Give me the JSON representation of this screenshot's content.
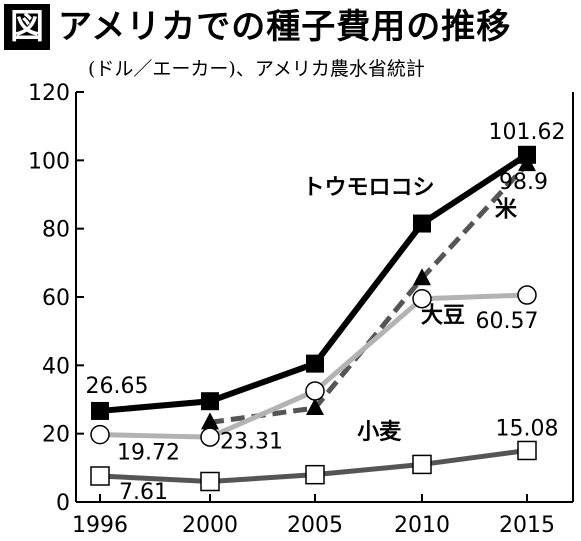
{
  "header": {
    "icon_label": "図",
    "title": "アメリカでの種子費用の推移",
    "subtitle": "(ドル／エーカー)、アメリカ農水省統計"
  },
  "chart_data": {
    "type": "line",
    "x": [
      1996,
      2000,
      2005,
      2010,
      2015
    ],
    "y_ticks": [
      0,
      20,
      40,
      60,
      80,
      100,
      120
    ],
    "ylim": [
      0,
      120
    ],
    "xlabel": "",
    "ylabel": "",
    "series": [
      {
        "name": "トウモロコシ",
        "points": [
          [
            1996,
            26.65
          ],
          [
            2000,
            29.5
          ],
          [
            2005,
            40.5
          ],
          [
            2010,
            81.5
          ],
          [
            2015,
            101.62
          ]
        ],
        "color": "#000000",
        "dash": "solid",
        "marker": "filled-square"
      },
      {
        "name": "米",
        "points": [
          [
            2000,
            23.31
          ],
          [
            2005,
            27.5
          ],
          [
            2010,
            65.5
          ],
          [
            2015,
            98.9
          ]
        ],
        "color": "#555555",
        "dash": "dashed",
        "marker": "filled-triangle"
      },
      {
        "name": "大豆",
        "points": [
          [
            1996,
            19.72
          ],
          [
            2000,
            19.0
          ],
          [
            2005,
            32.5
          ],
          [
            2010,
            59.5
          ],
          [
            2015,
            60.57
          ]
        ],
        "color": "#b3b3b3",
        "dash": "solid",
        "marker": "open-circle"
      },
      {
        "name": "小麦",
        "points": [
          [
            1996,
            7.61
          ],
          [
            2000,
            6.0
          ],
          [
            2005,
            8.0
          ],
          [
            2010,
            11.0
          ],
          [
            2015,
            15.08
          ]
        ],
        "color": "#555555",
        "dash": "solid",
        "marker": "open-square"
      }
    ],
    "annotations": [
      {
        "text": "26.65",
        "x": 1996,
        "y": 26.65,
        "pos": "above"
      },
      {
        "text": "101.62",
        "x": 2015,
        "y": 101.62,
        "pos": "above"
      },
      {
        "text": "98.9",
        "x": 2015,
        "y": 98.9,
        "pos": "below-right"
      },
      {
        "text": "19.72",
        "x": 1996,
        "y": 19.72,
        "pos": "below-right"
      },
      {
        "text": "23.31",
        "x": 2000,
        "y": 23.31,
        "pos": "below-right"
      },
      {
        "text": "60.57",
        "x": 2015,
        "y": 60.57,
        "pos": "below"
      },
      {
        "text": "15.08",
        "x": 2015,
        "y": 15.08,
        "pos": "above"
      },
      {
        "text": "7.61",
        "x": 1996,
        "y": 7.61,
        "pos": "below-right"
      }
    ],
    "series_labels": [
      {
        "text": "トウモロコシ",
        "x": 2007.5,
        "y": 90
      },
      {
        "text": "米",
        "x": 2014,
        "y": 83.5
      },
      {
        "text": "大豆",
        "x": 2011,
        "y": 52.5
      },
      {
        "text": "小麦",
        "x": 2008,
        "y": 18.5
      }
    ],
    "grid": false
  }
}
